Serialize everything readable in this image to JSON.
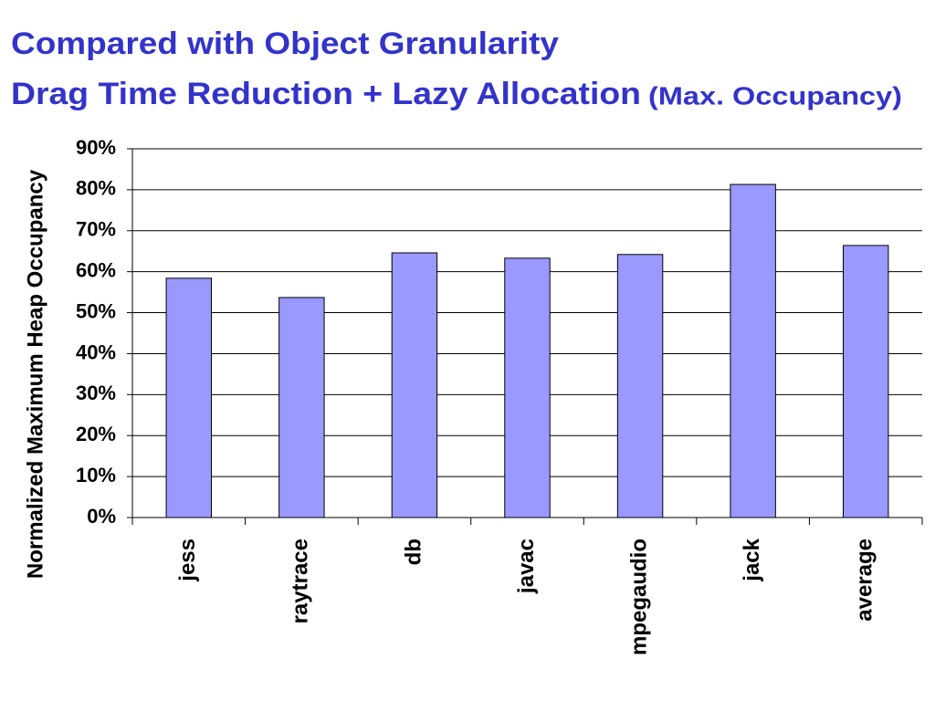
{
  "chart_data": {
    "type": "bar",
    "title": "Compared with Object Granularity",
    "subtitle": "Drag Time Reduction + Lazy Allocation",
    "subtitle_note": "(Max. Occupancy)",
    "y_label": "Normalized Maximum Heap Occupancy",
    "categories": [
      "jess",
      "raytrace",
      "db",
      "javac",
      "mpegaudio",
      "jack",
      "average"
    ],
    "values": [
      58.4,
      53.7,
      64.6,
      63.3,
      64.2,
      81.3,
      66.4
    ],
    "color": "#9999ff",
    "ylim": [
      0,
      90
    ],
    "yticks": [
      {
        "value": 0,
        "label": "0%"
      },
      {
        "value": 10,
        "label": "10%"
      },
      {
        "value": 20,
        "label": "20%"
      },
      {
        "value": 30,
        "label": "30%"
      },
      {
        "value": 40,
        "label": "40%"
      },
      {
        "value": 50,
        "label": "50%"
      },
      {
        "value": 60,
        "label": "60%"
      },
      {
        "value": 70,
        "label": "70%"
      },
      {
        "value": 80,
        "label": "80%"
      },
      {
        "value": 90,
        "label": "90%"
      }
    ],
    "grid": true
  }
}
